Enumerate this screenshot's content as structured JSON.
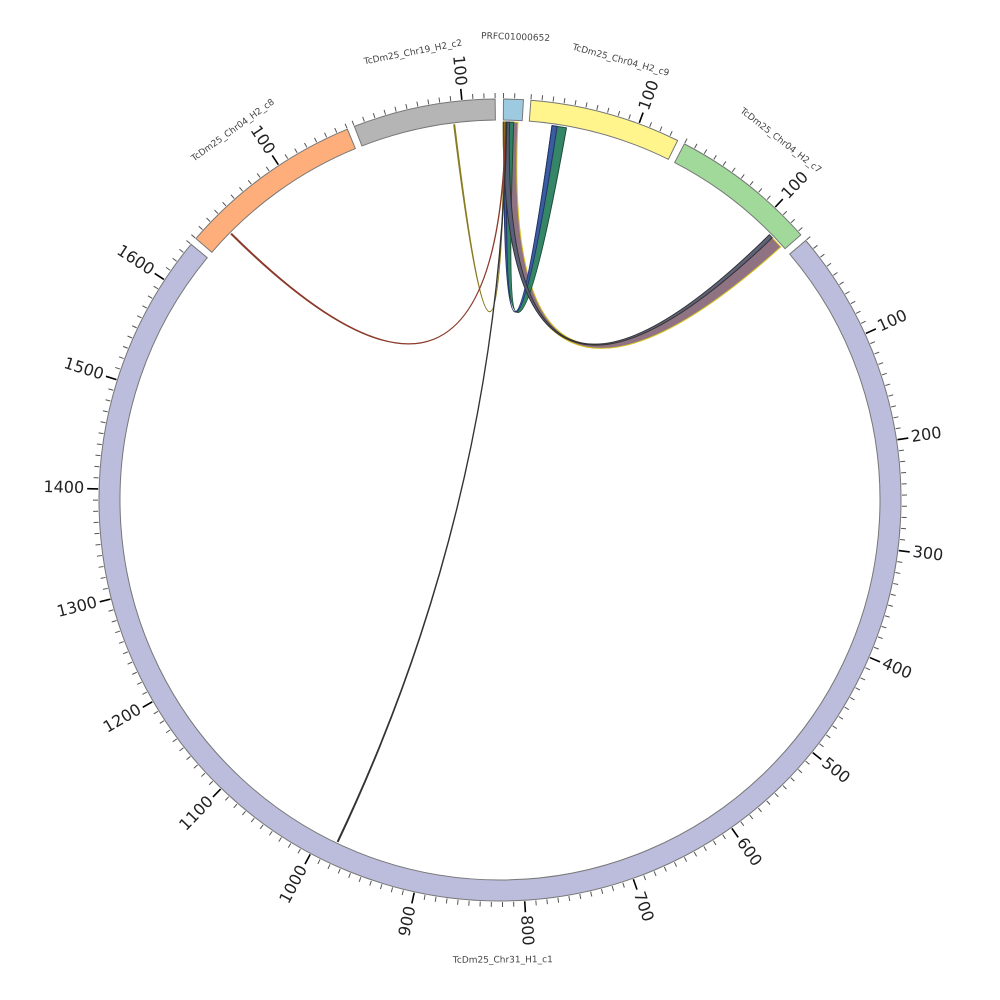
{
  "title_segment_order": "clockwise",
  "units_per_major_tick": 100,
  "units_per_minor_tick": 10,
  "segments": [
    {
      "name": "PRFC01000652",
      "length": 18,
      "color": "#9ecae1"
    },
    {
      "name": "TcDm25_Chr04_H2_c9",
      "length": 138,
      "color": "#fff58c"
    },
    {
      "name": "TcDm25_Chr04_H2_c7",
      "length": 134,
      "color": "#a1d99b"
    },
    {
      "name": "TcDm25_Chr31_H1_c1",
      "length": 1640,
      "color": "#bcbddc"
    },
    {
      "name": "TcDm25_Chr04_H2_c8",
      "length": 170,
      "color": "#fdae7b"
    },
    {
      "name": "TcDm25_Chr19_H2_c2",
      "length": 130,
      "color": "#b5b5b5"
    }
  ],
  "links": [
    {
      "from": 0,
      "from_start": 0,
      "from_end": 14,
      "to": 2,
      "to_start": 116,
      "to_end": 130,
      "color": "#8a6b7b",
      "edge": "#d8c020"
    },
    {
      "from": 0,
      "from_start": 1,
      "from_end": 10,
      "to": 1,
      "to_start": 22,
      "to_end": 36,
      "color": "#2a7f5f",
      "edge": "#1c4a38"
    },
    {
      "from": 0,
      "from_start": 1,
      "from_end": 4,
      "to": 1,
      "to_start": 22,
      "to_end": 27,
      "color": "#3b5ba5",
      "edge": "#223366"
    },
    {
      "from": 0,
      "from_start": 0,
      "from_end": 6,
      "to": 2,
      "to_start": 114,
      "to_end": 118,
      "color": "#5a5e7a",
      "edge": "#333"
    },
    {
      "from": 5,
      "from_start": 90,
      "from_end": 91,
      "to": 0,
      "to_start": 1,
      "to_end": 1.5,
      "color": "#8a7a20",
      "edge": "#8a7a20"
    },
    {
      "from": 4,
      "from_start": 25,
      "from_end": 26,
      "to": 0,
      "to_start": 2,
      "to_end": 2.5,
      "color": "#8b3a2a",
      "edge": "#8b3a2a"
    },
    {
      "from": 3,
      "from_start": 982,
      "from_end": 983,
      "to": 0,
      "to_start": 3,
      "to_end": 3.5,
      "color": "#333333",
      "edge": "#333333"
    }
  ]
}
